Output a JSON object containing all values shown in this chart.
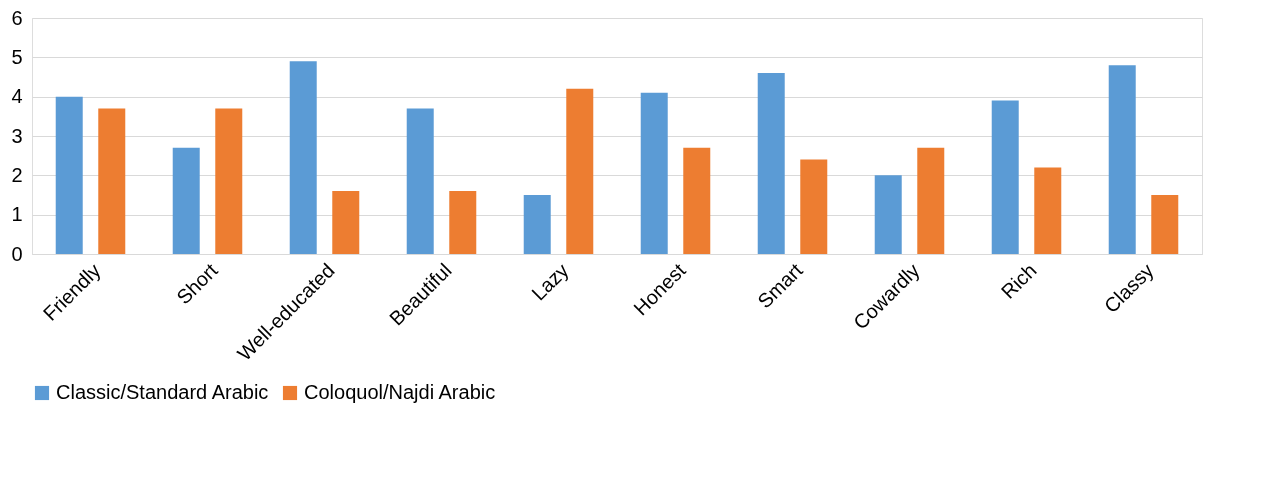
{
  "chart_data": {
    "type": "bar",
    "categories": [
      "Friendly",
      "Short",
      "Well-educated",
      "Beautiful",
      "Lazy",
      "Honest",
      "Smart",
      "Cowardly",
      "Rich",
      "Classy"
    ],
    "series": [
      {
        "name": "Classic/Standard Arabic",
        "color": "#5b9bd5",
        "values": [
          4.0,
          2.7,
          4.9,
          3.7,
          1.5,
          4.1,
          4.6,
          2.0,
          3.9,
          4.8
        ]
      },
      {
        "name": "Coloquol/Najdi Arabic",
        "color": "#ed7d31",
        "values": [
          3.7,
          3.7,
          1.6,
          1.6,
          4.2,
          2.7,
          2.4,
          2.7,
          2.2,
          1.5
        ]
      }
    ],
    "ylim": [
      0,
      6
    ],
    "yticks": [
      0,
      1,
      2,
      3,
      4,
      5,
      6
    ],
    "grid": "y",
    "legend": "bottom"
  }
}
